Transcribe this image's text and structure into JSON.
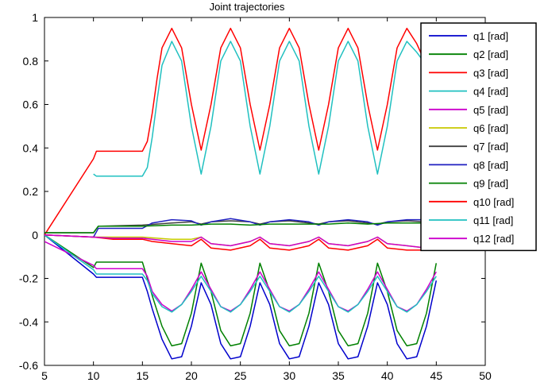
{
  "chart_data": {
    "type": "line",
    "title": "Joint trajectories",
    "xlabel": "",
    "ylabel": "",
    "xlim": [
      5,
      50
    ],
    "ylim": [
      -0.6,
      1
    ],
    "xticks": [
      5,
      10,
      15,
      20,
      25,
      30,
      35,
      40,
      45,
      50
    ],
    "yticks": [
      1,
      0.8,
      0.6,
      0.4,
      0.2,
      0,
      -0.2,
      -0.4,
      -0.6
    ],
    "xtick_labels": [
      "5",
      "10",
      "15",
      "20",
      "25",
      "30",
      "35",
      "40",
      "45",
      "50"
    ],
    "ytick_labels": [
      "1",
      "0.8",
      "0.6",
      "0.4",
      "0.2",
      "0",
      "-0.2",
      "-0.4",
      "-0.6"
    ],
    "grid": false,
    "legend_position": "top-right",
    "series": [
      {
        "name": "q1 [rad]",
        "color": "#0000cc",
        "x": [
          5,
          10,
          10.3,
          15,
          15.5,
          16,
          17,
          18,
          19,
          20,
          21,
          22,
          23,
          24,
          25,
          26,
          27,
          28,
          29,
          30,
          31,
          32,
          33,
          34,
          35,
          36,
          37,
          38,
          39,
          40,
          41,
          42,
          43,
          44,
          45
        ],
        "y": [
          0,
          -0.18,
          -0.195,
          -0.195,
          -0.26,
          -0.34,
          -0.48,
          -0.57,
          -0.56,
          -0.42,
          -0.22,
          -0.32,
          -0.5,
          -0.57,
          -0.56,
          -0.42,
          -0.22,
          -0.32,
          -0.5,
          -0.57,
          -0.56,
          -0.42,
          -0.22,
          -0.32,
          -0.5,
          -0.57,
          -0.56,
          -0.42,
          -0.22,
          -0.32,
          -0.5,
          -0.57,
          -0.56,
          -0.42,
          -0.21
        ]
      },
      {
        "name": "q2 [rad]",
        "color": "#008000",
        "x": [
          5,
          10,
          10.3,
          15,
          15.5,
          16,
          17,
          18,
          19,
          20,
          21,
          22,
          23,
          24,
          25,
          26,
          27,
          28,
          29,
          30,
          31,
          32,
          33,
          34,
          35,
          36,
          37,
          38,
          39,
          40,
          41,
          42,
          43,
          44,
          45
        ],
        "y": [
          0,
          -0.15,
          -0.125,
          -0.125,
          -0.2,
          -0.28,
          -0.42,
          -0.51,
          -0.5,
          -0.36,
          -0.13,
          -0.26,
          -0.44,
          -0.51,
          -0.5,
          -0.36,
          -0.13,
          -0.26,
          -0.44,
          -0.51,
          -0.5,
          -0.36,
          -0.13,
          -0.26,
          -0.44,
          -0.51,
          -0.5,
          -0.36,
          -0.13,
          -0.26,
          -0.44,
          -0.51,
          -0.5,
          -0.36,
          -0.13
        ]
      },
      {
        "name": "q3 [rad]",
        "color": "#ff0000",
        "x": [
          5,
          10,
          10.3,
          15,
          15.5,
          16,
          16.5,
          17,
          18,
          19,
          20,
          21,
          22,
          23,
          24,
          25,
          26,
          27,
          28,
          29,
          30,
          31,
          32,
          33,
          34,
          35,
          36,
          37,
          38,
          39,
          40,
          41,
          42,
          43,
          44,
          45
        ],
        "y": [
          0,
          0.35,
          0.385,
          0.385,
          0.43,
          0.56,
          0.72,
          0.86,
          0.95,
          0.86,
          0.6,
          0.39,
          0.6,
          0.86,
          0.95,
          0.86,
          0.6,
          0.39,
          0.6,
          0.86,
          0.95,
          0.86,
          0.6,
          0.39,
          0.6,
          0.86,
          0.95,
          0.86,
          0.6,
          0.39,
          0.6,
          0.86,
          0.95,
          0.88,
          0.78,
          0.75
        ]
      },
      {
        "name": "q4 [rad]",
        "color": "#20c0c0",
        "x": [
          10,
          10.3,
          15,
          15.5,
          16,
          16.5,
          17,
          18,
          19,
          20,
          21,
          22,
          23,
          24,
          25,
          26,
          27,
          28,
          29,
          30,
          31,
          32,
          33,
          34,
          35,
          36,
          37,
          38,
          39,
          40,
          41,
          42,
          43,
          44,
          45
        ],
        "y": [
          0.28,
          0.27,
          0.27,
          0.31,
          0.45,
          0.62,
          0.78,
          0.89,
          0.8,
          0.5,
          0.28,
          0.5,
          0.8,
          0.89,
          0.8,
          0.5,
          0.28,
          0.5,
          0.8,
          0.89,
          0.8,
          0.5,
          0.28,
          0.5,
          0.8,
          0.89,
          0.8,
          0.5,
          0.28,
          0.5,
          0.8,
          0.89,
          0.84,
          0.78,
          0.75
        ]
      },
      {
        "name": "q5 [rad]",
        "color": "#cc00cc",
        "x": [
          5,
          10,
          10.3,
          15,
          15.5,
          16,
          17,
          18,
          19,
          20,
          21,
          22,
          23,
          24,
          25,
          26,
          27,
          28,
          29,
          30,
          31,
          32,
          33,
          34,
          35,
          36,
          37,
          38,
          39,
          40,
          41,
          42,
          43,
          44,
          45
        ],
        "y": [
          -0.03,
          -0.14,
          -0.155,
          -0.155,
          -0.19,
          -0.26,
          -0.32,
          -0.35,
          -0.32,
          -0.25,
          -0.17,
          -0.25,
          -0.33,
          -0.35,
          -0.32,
          -0.25,
          -0.17,
          -0.25,
          -0.33,
          -0.35,
          -0.32,
          -0.25,
          -0.17,
          -0.25,
          -0.33,
          -0.35,
          -0.32,
          -0.25,
          -0.17,
          -0.25,
          -0.33,
          -0.35,
          -0.32,
          -0.25,
          -0.17
        ]
      },
      {
        "name": "q6 [rad]",
        "color": "#c8c800",
        "x": [
          5,
          10,
          12,
          15,
          18,
          20,
          21,
          22,
          24,
          26,
          27,
          28,
          30,
          32,
          33,
          34,
          36,
          38,
          39,
          40,
          42,
          44,
          45
        ],
        "y": [
          0,
          -0.01,
          -0.01,
          -0.01,
          -0.02,
          -0.02,
          -0.01,
          -0.04,
          -0.05,
          -0.03,
          -0.01,
          -0.04,
          -0.05,
          -0.03,
          -0.01,
          -0.04,
          -0.05,
          -0.03,
          -0.01,
          -0.04,
          -0.05,
          -0.06,
          -0.06
        ]
      },
      {
        "name": "q7 [rad]",
        "color": "#404040",
        "x": [
          5,
          10,
          10.5,
          15,
          18,
          20,
          21,
          22,
          24,
          26,
          27,
          28,
          30,
          32,
          33,
          34,
          36,
          38,
          39,
          40,
          42,
          44,
          45
        ],
        "y": [
          0.01,
          0.01,
          0.04,
          0.045,
          0.055,
          0.06,
          0.05,
          0.06,
          0.065,
          0.06,
          0.05,
          0.06,
          0.065,
          0.055,
          0.05,
          0.06,
          0.065,
          0.055,
          0.05,
          0.06,
          0.065,
          0.06,
          0.06
        ]
      },
      {
        "name": "q8 [rad]",
        "color": "#2020c0",
        "x": [
          5,
          10,
          10.5,
          15,
          16,
          18,
          20,
          21,
          22,
          24,
          26,
          27,
          28,
          30,
          32,
          33,
          34,
          36,
          38,
          39,
          40,
          42,
          44,
          45
        ],
        "y": [
          0,
          -0.01,
          0.03,
          0.03,
          0.055,
          0.07,
          0.065,
          0.045,
          0.06,
          0.075,
          0.06,
          0.045,
          0.06,
          0.07,
          0.06,
          0.045,
          0.06,
          0.07,
          0.06,
          0.045,
          0.06,
          0.07,
          0.07,
          0.07
        ]
      },
      {
        "name": "q9 [rad]",
        "color": "#008000",
        "x": [
          5,
          10,
          10.5,
          15,
          18,
          20,
          22,
          24,
          26,
          28,
          30,
          32,
          34,
          36,
          38,
          40,
          42,
          44,
          45
        ],
        "y": [
          0.01,
          0.01,
          0.04,
          0.04,
          0.045,
          0.045,
          0.05,
          0.05,
          0.045,
          0.05,
          0.05,
          0.05,
          0.05,
          0.055,
          0.05,
          0.055,
          0.055,
          0.055,
          0.055
        ]
      },
      {
        "name": "q10 [rad]",
        "color": "#ff0000",
        "x": [
          5,
          10,
          12,
          15,
          16,
          18,
          20,
          21,
          22,
          24,
          26,
          27,
          28,
          30,
          32,
          33,
          34,
          36,
          38,
          39,
          40,
          42,
          44,
          45
        ],
        "y": [
          0,
          -0.01,
          -0.02,
          -0.02,
          -0.03,
          -0.04,
          -0.05,
          -0.02,
          -0.06,
          -0.07,
          -0.05,
          -0.02,
          -0.06,
          -0.07,
          -0.05,
          -0.02,
          -0.06,
          -0.07,
          -0.05,
          -0.02,
          -0.06,
          -0.07,
          -0.07,
          -0.07
        ]
      },
      {
        "name": "q11 [rad]",
        "color": "#20c0c0",
        "x": [
          5,
          10,
          10.3,
          15,
          15.5,
          16,
          17,
          18,
          19,
          20,
          21,
          22,
          23,
          24,
          25,
          26,
          27,
          28,
          29,
          30,
          31,
          32,
          33,
          34,
          35,
          36,
          37,
          38,
          39,
          40,
          41,
          42,
          43,
          44,
          45
        ],
        "y": [
          0,
          -0.16,
          -0.18,
          -0.18,
          -0.21,
          -0.27,
          -0.33,
          -0.355,
          -0.32,
          -0.26,
          -0.19,
          -0.26,
          -0.33,
          -0.355,
          -0.32,
          -0.26,
          -0.19,
          -0.26,
          -0.33,
          -0.355,
          -0.32,
          -0.26,
          -0.19,
          -0.26,
          -0.33,
          -0.355,
          -0.32,
          -0.26,
          -0.19,
          -0.26,
          -0.33,
          -0.355,
          -0.32,
          -0.26,
          -0.19
        ]
      },
      {
        "name": "q12 [rad]",
        "color": "#cc00cc",
        "x": [
          5,
          10,
          12,
          15,
          16,
          18,
          20,
          21,
          22,
          24,
          26,
          27,
          28,
          30,
          32,
          33,
          34,
          36,
          38,
          39,
          40,
          42,
          44,
          45
        ],
        "y": [
          0,
          -0.01,
          -0.015,
          -0.015,
          -0.02,
          -0.03,
          -0.03,
          -0.01,
          -0.04,
          -0.05,
          -0.03,
          -0.01,
          -0.04,
          -0.05,
          -0.03,
          -0.01,
          -0.04,
          -0.05,
          -0.03,
          -0.01,
          -0.04,
          -0.05,
          -0.06,
          -0.06
        ]
      }
    ]
  }
}
